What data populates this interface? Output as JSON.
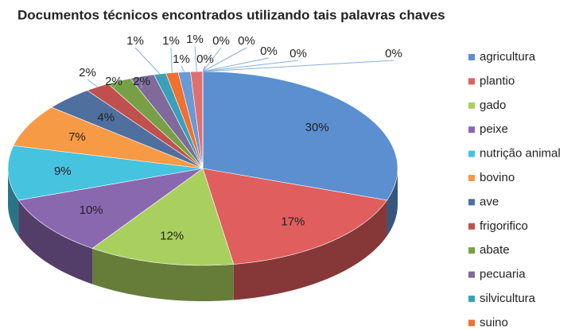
{
  "chart_data": {
    "type": "pie3d",
    "title": "Documentos técnicos encontrados utilizando tais palavras chaves",
    "categories": [
      "agricultura",
      "plantio",
      "gado",
      "peixe",
      "nutrição animal",
      "bovino",
      "ave",
      "frigorifico",
      "abate",
      "pecuaria",
      "silvicultura",
      "suino",
      null,
      null,
      null,
      null,
      null,
      null,
      null,
      null
    ],
    "values": [
      30,
      17,
      12,
      10,
      9,
      7,
      4,
      2,
      2,
      2,
      1,
      1,
      1,
      1,
      0,
      0,
      0,
      0,
      0,
      0
    ],
    "value_labels": [
      "30%",
      "17%",
      "12%",
      "10%",
      "9%",
      "7%",
      "4%",
      "2%",
      "2%",
      "2%",
      "1%",
      "1%",
      "1%",
      "1%",
      "0%",
      "0%",
      "0%",
      "0%",
      "0%",
      "0%"
    ],
    "colors": [
      "#5b8fd0",
      "#e05e5e",
      "#a9d05e",
      "#8a68b0",
      "#45c3df",
      "#f79a45",
      "#4f6f9f",
      "#c0504d",
      "#77a046",
      "#7f6a9a",
      "#3aa0b8",
      "#f07030",
      "#6a9ad4",
      "#e07070",
      "#b0d070",
      "#9070b0",
      "#50c0d8",
      "#f0a060",
      "#6080b0",
      "#c06060"
    ],
    "legend": "right"
  }
}
